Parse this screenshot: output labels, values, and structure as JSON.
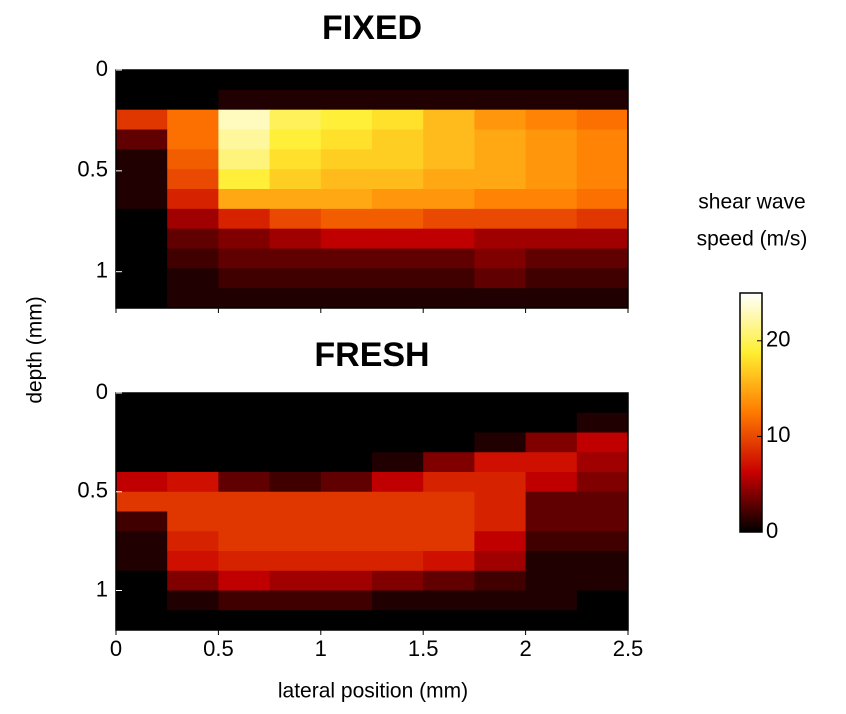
{
  "chart_data": {
    "type": "heatmap",
    "ylabel": "depth (mm)",
    "xlabel": "lateral position (mm)",
    "colormap": [
      "#000000",
      "#c80000",
      "#ff7a00",
      "#ffee30",
      "#ffffff"
    ],
    "colorbar_label": [
      "shear wave",
      "speed (m/s)"
    ],
    "clim": [
      0,
      25
    ],
    "cticks": [
      0,
      10,
      20
    ],
    "panels": [
      {
        "title": "FIXED",
        "xlim": [
          0,
          2.5
        ],
        "ylim": [
          1.18,
          0
        ],
        "xticks": [
          0,
          0.5,
          1,
          1.5,
          2,
          2.5
        ],
        "xtick_labels": false,
        "yticks": [
          0,
          0.5,
          1
        ],
        "values": [
          [
            0,
            0,
            0,
            0,
            0,
            0,
            0,
            0,
            0,
            0
          ],
          [
            0,
            0,
            1,
            1,
            1,
            1,
            1,
            1,
            1,
            1
          ],
          [
            9,
            12,
            23,
            20,
            19,
            18,
            16,
            14,
            13,
            12
          ],
          [
            3,
            12,
            22,
            19,
            18,
            17,
            16,
            15,
            14,
            13
          ],
          [
            1,
            11,
            21,
            18,
            17,
            17,
            16,
            15,
            14,
            13
          ],
          [
            1,
            10,
            19,
            17,
            16,
            16,
            15,
            15,
            14,
            13
          ],
          [
            1,
            8,
            15,
            15,
            15,
            14,
            14,
            13,
            13,
            12
          ],
          [
            0,
            5,
            8,
            10,
            11,
            11,
            10,
            10,
            10,
            9
          ],
          [
            0,
            3,
            4,
            5,
            6,
            6,
            6,
            5,
            5,
            5
          ],
          [
            0,
            2,
            3,
            3,
            3,
            3,
            3,
            4,
            3,
            3
          ],
          [
            0,
            1,
            2,
            2,
            2,
            2,
            2,
            3,
            2,
            2
          ],
          [
            0,
            1,
            1,
            1,
            1,
            1,
            1,
            1,
            1,
            1
          ]
        ]
      },
      {
        "title": "FRESH",
        "xlim": [
          0,
          2.5
        ],
        "ylim": [
          1.2,
          0
        ],
        "xticks": [
          0,
          0.5,
          1,
          1.5,
          2,
          2.5
        ],
        "xtick_labels": true,
        "yticks": [
          0,
          0.5,
          1
        ],
        "values": [
          [
            0,
            0,
            0,
            0,
            0,
            0,
            0,
            0,
            0,
            0
          ],
          [
            0,
            0,
            0,
            0,
            0,
            0,
            0,
            0,
            0,
            1
          ],
          [
            0,
            0,
            0,
            0,
            0,
            0,
            0,
            1,
            4,
            6
          ],
          [
            0,
            0,
            0,
            0,
            0,
            1,
            4,
            7,
            7,
            5
          ],
          [
            6,
            7,
            3,
            2,
            3,
            6,
            8,
            8,
            6,
            4
          ],
          [
            9,
            9,
            9,
            9,
            9,
            9,
            9,
            8,
            3,
            3
          ],
          [
            2,
            9,
            9,
            9,
            9,
            9,
            9,
            8,
            3,
            3
          ],
          [
            1,
            8,
            9,
            9,
            9,
            9,
            9,
            6,
            2,
            2
          ],
          [
            1,
            7,
            8,
            8,
            8,
            8,
            7,
            5,
            1,
            1
          ],
          [
            0,
            4,
            6,
            5,
            5,
            4,
            3,
            2,
            1,
            1
          ],
          [
            0,
            1,
            2,
            2,
            2,
            1,
            1,
            1,
            1,
            0
          ],
          [
            0,
            0,
            0,
            0,
            0,
            0,
            0,
            0,
            0,
            0
          ]
        ]
      }
    ]
  }
}
